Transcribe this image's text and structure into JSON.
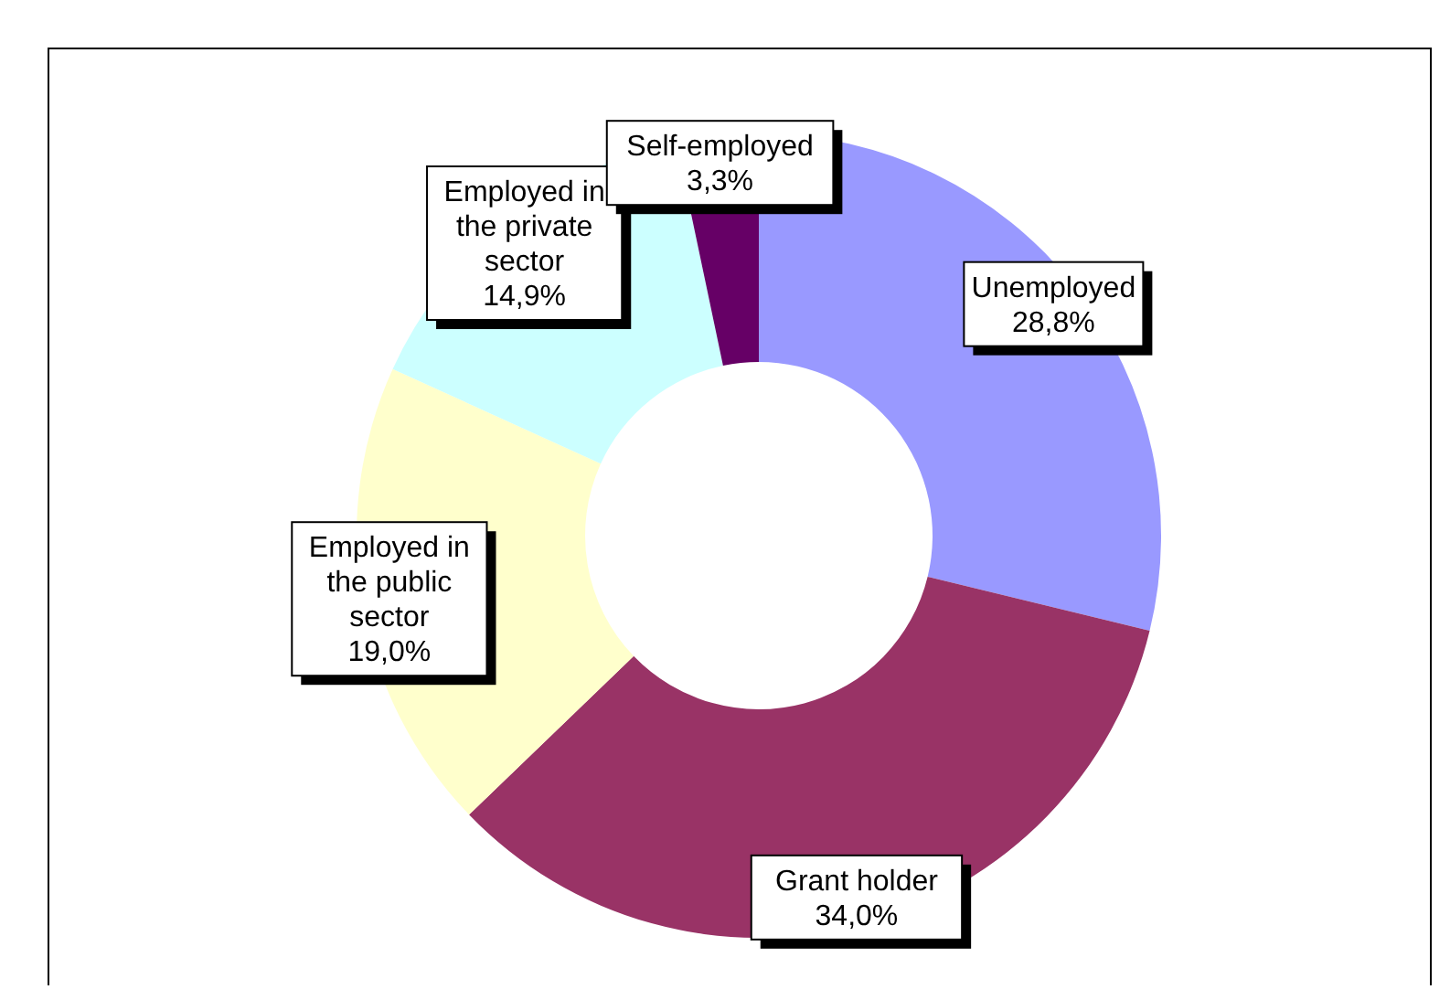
{
  "chart_data": {
    "type": "donut",
    "categories": [
      "Unemployed",
      "Grant holder",
      "Employed in the public sector",
      "Employed in the private sector",
      "Self-employed"
    ],
    "values": [
      28.8,
      34.0,
      19.0,
      14.9,
      3.3
    ],
    "value_labels": [
      "28,8%",
      "34,0%",
      "19,0%",
      "14,9%",
      "3,3%"
    ],
    "colors": [
      "#9999ff",
      "#993366",
      "#ffffcc",
      "#ccffff",
      "#660066"
    ]
  }
}
